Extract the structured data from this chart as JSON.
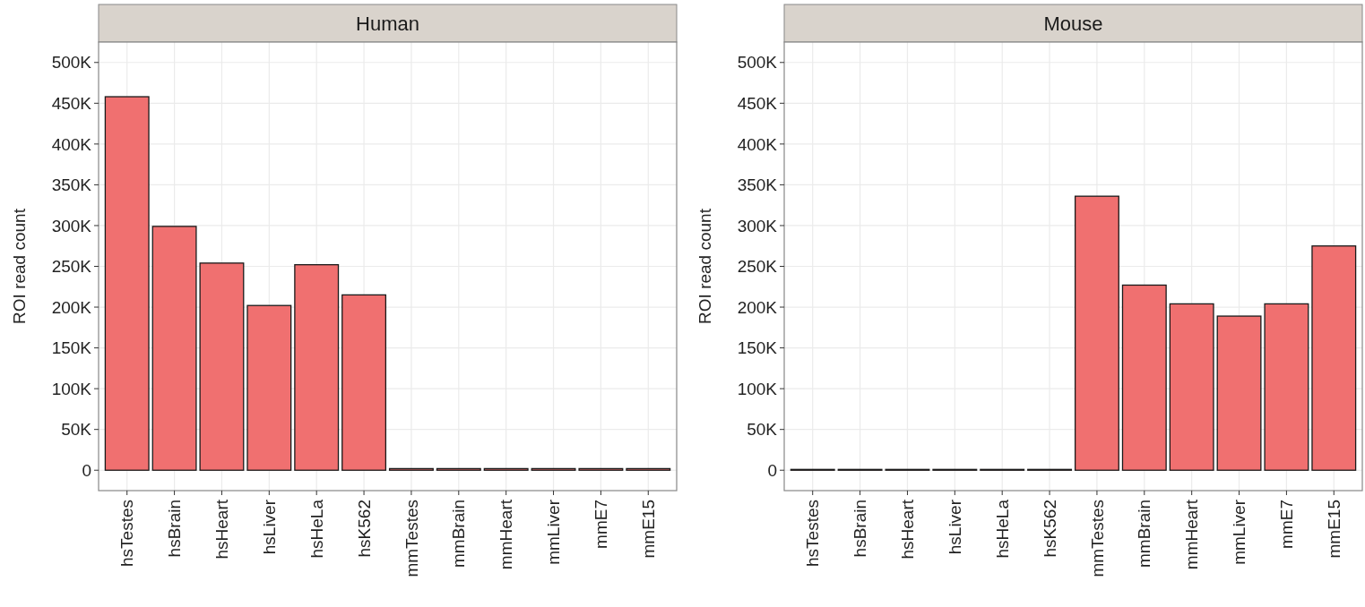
{
  "chart_data": [
    {
      "type": "bar",
      "title": "Human",
      "ylabel": "ROI read count",
      "categories": [
        "hsTestes",
        "hsBrain",
        "hsHeart",
        "hsLiver",
        "hsHeLa",
        "hsK562",
        "mmTestes",
        "mmBrain",
        "mmHeart",
        "mmLiver",
        "mmE7",
        "mmE15"
      ],
      "values": [
        458000,
        299000,
        254000,
        202000,
        252000,
        215000,
        2000,
        2000,
        2000,
        2000,
        2000,
        2000
      ],
      "color": "#f07070",
      "ylim": [
        -25000,
        525000
      ],
      "yticks": [
        0,
        {
          "value": 50000,
          "label": "50K"
        },
        {
          "value": 100000,
          "label": "100K"
        },
        {
          "value": 150000,
          "label": "150K"
        },
        {
          "value": 200000,
          "label": "200K"
        },
        {
          "value": 250000,
          "label": "250K"
        },
        {
          "value": 300000,
          "label": "300K"
        },
        {
          "value": 350000,
          "label": "350K"
        },
        {
          "value": 400000,
          "label": "400K"
        },
        {
          "value": 450000,
          "label": "450K"
        },
        {
          "value": 500000,
          "label": "500K"
        }
      ],
      "grid": true
    },
    {
      "type": "bar",
      "title": "Mouse",
      "ylabel": "ROI read count",
      "categories": [
        "hsTestes",
        "hsBrain",
        "hsHeart",
        "hsLiver",
        "hsHeLa",
        "hsK562",
        "mmTestes",
        "mmBrain",
        "mmHeart",
        "mmLiver",
        "mmE7",
        "mmE15"
      ],
      "values": [
        1000,
        1000,
        1000,
        1000,
        1000,
        1000,
        336000,
        227000,
        204000,
        189000,
        204000,
        275000
      ],
      "color": "#f07070",
      "ylim": [
        -25000,
        525000
      ],
      "yticks": [
        0,
        {
          "value": 50000,
          "label": "50K"
        },
        {
          "value": 100000,
          "label": "100K"
        },
        {
          "value": 150000,
          "label": "150K"
        },
        {
          "value": 200000,
          "label": "200K"
        },
        {
          "value": 250000,
          "label": "250K"
        },
        {
          "value": 300000,
          "label": "300K"
        },
        {
          "value": 350000,
          "label": "350K"
        },
        {
          "value": 400000,
          "label": "400K"
        },
        {
          "value": 450000,
          "label": "450K"
        },
        {
          "value": 500000,
          "label": "500K"
        }
      ],
      "grid": true
    }
  ]
}
